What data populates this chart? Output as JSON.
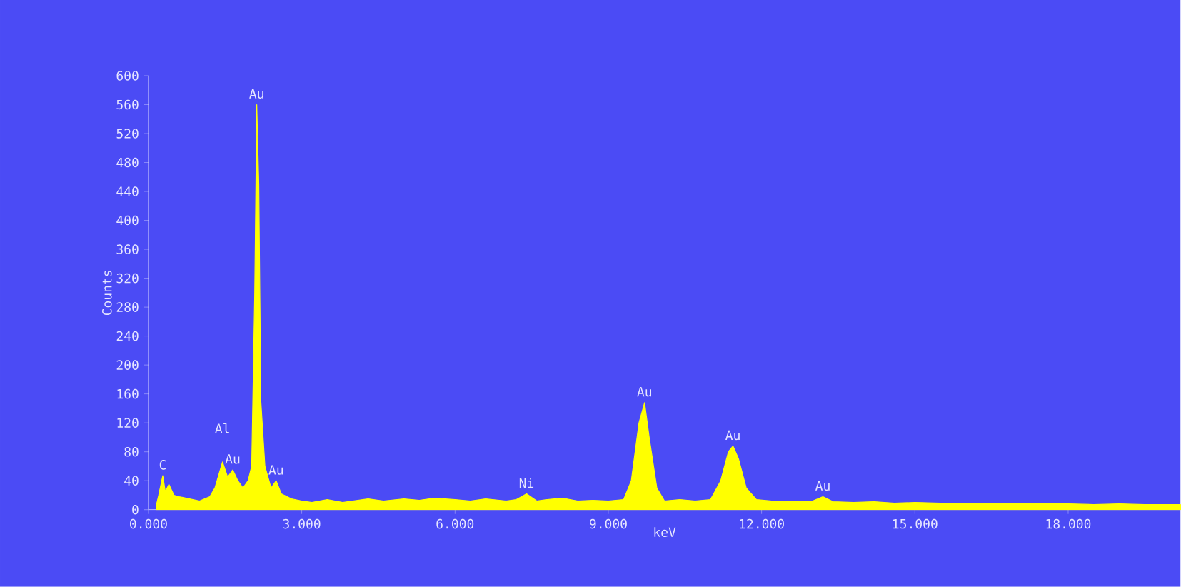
{
  "chart_data": {
    "type": "area",
    "xlabel": "keV",
    "ylabel": "Counts",
    "xlim": [
      0,
      20.2
    ],
    "ylim": [
      0,
      600
    ],
    "xticks": [
      {
        "value": 0,
        "label": "0.000"
      },
      {
        "value": 3,
        "label": "3.000"
      },
      {
        "value": 6,
        "label": "6.000"
      },
      {
        "value": 9,
        "label": "9.000"
      },
      {
        "value": 12,
        "label": "12.000"
      },
      {
        "value": 15,
        "label": "15.000"
      },
      {
        "value": 18,
        "label": "18.000"
      }
    ],
    "yticks": [
      0,
      40,
      80,
      120,
      160,
      200,
      240,
      280,
      320,
      360,
      400,
      440,
      480,
      520,
      560,
      600
    ],
    "series": [
      {
        "color": "#ffff00",
        "x": [
          0.15,
          0.2,
          0.28,
          0.33,
          0.4,
          0.5,
          0.6,
          0.8,
          1.0,
          1.1,
          1.2,
          1.3,
          1.45,
          1.55,
          1.65,
          1.75,
          1.85,
          1.95,
          2.02,
          2.08,
          2.12,
          2.16,
          2.2,
          2.28,
          2.4,
          2.5,
          2.6,
          2.8,
          3.0,
          3.2,
          3.5,
          3.8,
          4.0,
          4.3,
          4.6,
          5.0,
          5.3,
          5.6,
          6.0,
          6.3,
          6.6,
          7.0,
          7.2,
          7.4,
          7.6,
          7.8,
          8.1,
          8.4,
          8.7,
          9.0,
          9.3,
          9.45,
          9.6,
          9.71,
          9.8,
          9.95,
          10.1,
          10.4,
          10.7,
          11.0,
          11.2,
          11.35,
          11.44,
          11.55,
          11.7,
          11.9,
          12.2,
          12.6,
          13.0,
          13.2,
          13.4,
          13.8,
          14.2,
          14.6,
          15.0,
          15.5,
          16.0,
          16.5,
          17.0,
          17.5,
          18.0,
          18.5,
          19.0,
          19.5,
          20.0,
          20.2
        ],
        "values": [
          5,
          20,
          47,
          25,
          35,
          20,
          18,
          15,
          12,
          15,
          18,
          30,
          66,
          45,
          55,
          40,
          30,
          40,
          60,
          300,
          560,
          450,
          150,
          60,
          30,
          40,
          22,
          15,
          12,
          10,
          14,
          10,
          12,
          15,
          12,
          15,
          13,
          16,
          14,
          12,
          15,
          12,
          14,
          22,
          12,
          14,
          16,
          12,
          13,
          12,
          14,
          40,
          120,
          148,
          100,
          30,
          12,
          14,
          12,
          14,
          40,
          80,
          88,
          70,
          30,
          14,
          12,
          11,
          12,
          18,
          11,
          10,
          11,
          9,
          10,
          9,
          9,
          8,
          9,
          8,
          8,
          7,
          8,
          7,
          7,
          7
        ]
      }
    ],
    "annotations": [
      {
        "text": "C",
        "x": 0.28,
        "y": 47
      },
      {
        "text": "Al",
        "x": 1.45,
        "y": 66
      },
      {
        "text": "Au",
        "x": 1.65,
        "y": 55
      },
      {
        "text": "Au",
        "x": 2.12,
        "y": 560
      },
      {
        "text": "Au",
        "x": 2.5,
        "y": 40
      },
      {
        "text": "Ni",
        "x": 7.4,
        "y": 22
      },
      {
        "text": "Au",
        "x": 9.71,
        "y": 148
      },
      {
        "text": "Au",
        "x": 11.44,
        "y": 88
      },
      {
        "text": "Au",
        "x": 13.2,
        "y": 18
      }
    ]
  }
}
